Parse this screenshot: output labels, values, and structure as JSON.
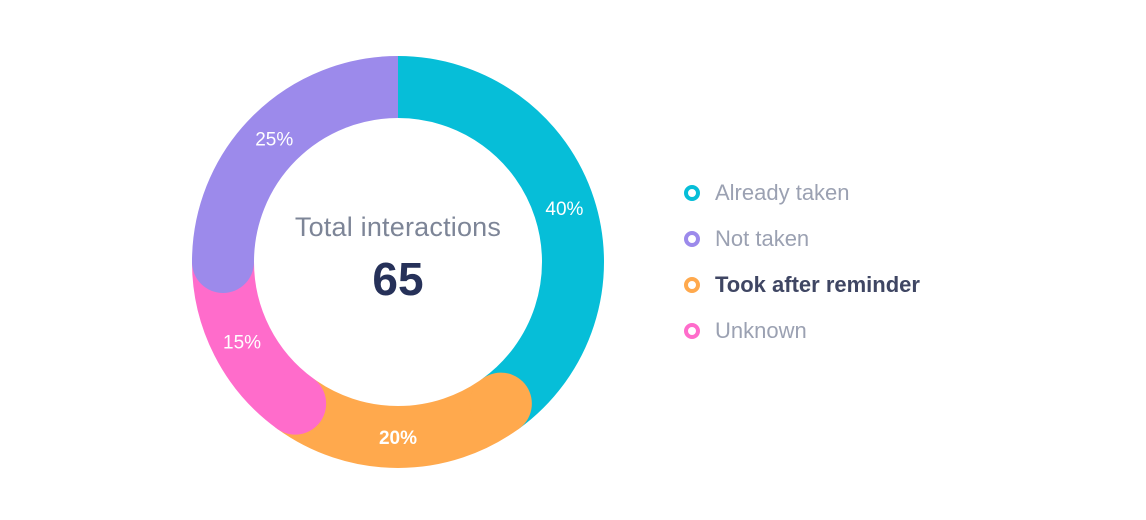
{
  "chart_data": {
    "type": "pie",
    "variant": "donut",
    "center": {
      "label": "Total interactions",
      "value": "65"
    },
    "slices": [
      {
        "name": "Already taken",
        "value": 40,
        "label": "40%",
        "color": "#06bed8"
      },
      {
        "name": "Took after reminder",
        "value": 20,
        "label": "20%",
        "color": "#ffa94d"
      },
      {
        "name": "Unknown",
        "value": 15,
        "label": "15%",
        "color": "#ff6ccb"
      },
      {
        "name": "Not taken",
        "value": 25,
        "label": "25%",
        "color": "#9c8aeb"
      }
    ],
    "legend": {
      "position": "right",
      "items": [
        {
          "label": "Already taken",
          "color": "#06bed8",
          "active": false
        },
        {
          "label": "Not taken",
          "color": "#9c8aeb",
          "active": false
        },
        {
          "label": "Took after reminder",
          "color": "#ffa94d",
          "active": true
        },
        {
          "label": "Unknown",
          "color": "#ff6ccb",
          "active": false
        }
      ]
    },
    "highlighted": "Took after reminder"
  }
}
